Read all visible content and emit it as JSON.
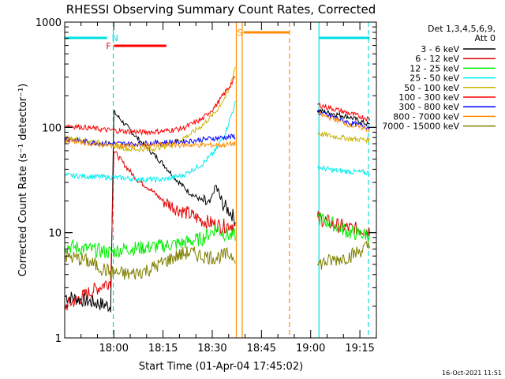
{
  "chart_data": {
    "type": "line",
    "title": "RHESSI Observing Summary Count Rates, Corrected",
    "xlabel": "Start Time (01-Apr-04 17:45:02)",
    "ylabel": "Corrected Count Rate (s⁻¹ detector⁻¹)",
    "y_scale": "log",
    "ylim": [
      1,
      1000
    ],
    "xlim_minutes": [
      0,
      95
    ],
    "x_ticks": [
      {
        "label": "18:00",
        "minutes": 14.97
      },
      {
        "label": "18:15",
        "minutes": 29.97
      },
      {
        "label": "18:30",
        "minutes": 44.97
      },
      {
        "label": "18:45",
        "minutes": 59.97
      },
      {
        "label": "19:00",
        "minutes": 74.97
      },
      {
        "label": "19:15",
        "minutes": 89.97
      }
    ],
    "y_ticks": [
      {
        "label": "1",
        "value": 1
      },
      {
        "label": "10",
        "value": 10
      },
      {
        "label": "100",
        "value": 100
      },
      {
        "label": "1000",
        "value": 1000
      }
    ],
    "legend_header": [
      "Det 1,3,4,5,6,9,",
      "Att 0"
    ],
    "timestamp": "16-Oct-2021 11:51",
    "series": [
      {
        "name": "3 - 6 keV",
        "color": "#000000",
        "points": [
          [
            0,
            2.5
          ],
          [
            14,
            2.0
          ],
          [
            15,
            140
          ],
          [
            18,
            110
          ],
          [
            22,
            80
          ],
          [
            26,
            60
          ],
          [
            30,
            45
          ],
          [
            34,
            32
          ],
          [
            38,
            24
          ],
          [
            42,
            20
          ],
          [
            44,
            18
          ],
          [
            46,
            28
          ],
          [
            48,
            19
          ],
          [
            51,
            15
          ],
          [
            52,
            13
          ],
          [
            63,
            0
          ],
          [
            75,
            0
          ],
          [
            77,
            145
          ],
          [
            82,
            135
          ],
          [
            87,
            125
          ],
          [
            93,
            105
          ]
        ]
      },
      {
        "name": "6 - 12 keV",
        "color": "#e00000",
        "points": [
          [
            0,
            2.0
          ],
          [
            14,
            3.5
          ],
          [
            15,
            60
          ],
          [
            18,
            45
          ],
          [
            22,
            32
          ],
          [
            26,
            26
          ],
          [
            30,
            20
          ],
          [
            34,
            17
          ],
          [
            38,
            15
          ],
          [
            42,
            13
          ],
          [
            46,
            12
          ],
          [
            48,
            11.5
          ],
          [
            51,
            12
          ],
          [
            52,
            11
          ],
          [
            63,
            0
          ],
          [
            75,
            0
          ],
          [
            77,
            14
          ],
          [
            82,
            12
          ],
          [
            87,
            11
          ],
          [
            93,
            10.5
          ]
        ]
      },
      {
        "name": "12 - 25 keV",
        "color": "#00ee00",
        "points": [
          [
            0,
            7.5
          ],
          [
            14,
            6.5
          ],
          [
            18,
            7.0
          ],
          [
            24,
            7.2
          ],
          [
            30,
            7.5
          ],
          [
            36,
            8.0
          ],
          [
            42,
            8.8
          ],
          [
            46,
            11
          ],
          [
            48,
            10
          ],
          [
            51,
            9.2
          ],
          [
            52,
            9.5
          ],
          [
            63,
            0
          ],
          [
            75,
            0
          ],
          [
            77,
            14
          ],
          [
            82,
            12
          ],
          [
            87,
            10
          ],
          [
            93,
            9.5
          ]
        ]
      },
      {
        "name": "25 - 50 keV",
        "color": "#00eeee",
        "points": [
          [
            0,
            35
          ],
          [
            10,
            34
          ],
          [
            18,
            33
          ],
          [
            24,
            32
          ],
          [
            30,
            32
          ],
          [
            36,
            35
          ],
          [
            42,
            45
          ],
          [
            46,
            60
          ],
          [
            49,
            90
          ],
          [
            52,
            170
          ],
          [
            63,
            0
          ],
          [
            75,
            0
          ],
          [
            77,
            42
          ],
          [
            82,
            39
          ],
          [
            87,
            38
          ],
          [
            93,
            37
          ]
        ]
      },
      {
        "name": "50 - 100 keV",
        "color": "#c8b400",
        "points": [
          [
            0,
            80
          ],
          [
            8,
            74
          ],
          [
            14,
            68
          ],
          [
            20,
            62
          ],
          [
            26,
            62
          ],
          [
            32,
            68
          ],
          [
            38,
            85
          ],
          [
            42,
            105
          ],
          [
            46,
            140
          ],
          [
            50,
            220
          ],
          [
            52,
            380
          ],
          [
            63,
            0
          ],
          [
            75,
            0
          ],
          [
            77,
            88
          ],
          [
            82,
            82
          ],
          [
            87,
            78
          ],
          [
            93,
            76
          ]
        ]
      },
      {
        "name": "100 - 300 keV",
        "color": "#ff0000",
        "points": [
          [
            0,
            105
          ],
          [
            6,
            100
          ],
          [
            12,
            95
          ],
          [
            18,
            92
          ],
          [
            24,
            90
          ],
          [
            30,
            92
          ],
          [
            36,
            98
          ],
          [
            42,
            120
          ],
          [
            46,
            160
          ],
          [
            50,
            240
          ],
          [
            52,
            300
          ],
          [
            63,
            0
          ],
          [
            75,
            0
          ],
          [
            77,
            165
          ],
          [
            82,
            150
          ],
          [
            87,
            135
          ],
          [
            93,
            120
          ]
        ]
      },
      {
        "name": "300 - 800 keV",
        "color": "#0000ff",
        "points": [
          [
            0,
            78
          ],
          [
            8,
            72
          ],
          [
            14,
            70
          ],
          [
            22,
            70
          ],
          [
            30,
            72
          ],
          [
            38,
            74
          ],
          [
            44,
            78
          ],
          [
            48,
            80
          ],
          [
            52,
            82
          ],
          [
            63,
            0
          ],
          [
            75,
            0
          ],
          [
            77,
            140
          ],
          [
            82,
            125
          ],
          [
            87,
            110
          ],
          [
            93,
            100
          ]
        ]
      },
      {
        "name": "800 - 7000 keV",
        "color": "#ff8c00",
        "points": [
          [
            0,
            76
          ],
          [
            8,
            70
          ],
          [
            14,
            67
          ],
          [
            22,
            67
          ],
          [
            30,
            68
          ],
          [
            38,
            68
          ],
          [
            44,
            68
          ],
          [
            48,
            68
          ],
          [
            52,
            70
          ],
          [
            63,
            0
          ],
          [
            75,
            0
          ],
          [
            77,
            135
          ],
          [
            82,
            120
          ],
          [
            87,
            105
          ],
          [
            93,
            95
          ]
        ]
      },
      {
        "name": "7000 - 15000 keV",
        "color": "#808000",
        "points": [
          [
            0,
            6.0
          ],
          [
            6,
            5.5
          ],
          [
            10,
            4.8
          ],
          [
            14,
            4.2
          ],
          [
            20,
            4.0
          ],
          [
            26,
            4.5
          ],
          [
            30,
            5.2
          ],
          [
            34,
            6.0
          ],
          [
            38,
            6.5
          ],
          [
            42,
            6.0
          ],
          [
            46,
            5.8
          ],
          [
            50,
            6.2
          ],
          [
            52,
            6.0
          ],
          [
            63,
            0
          ],
          [
            75,
            0
          ],
          [
            77,
            5.0
          ],
          [
            82,
            5.5
          ],
          [
            87,
            6.0
          ],
          [
            91,
            7.0
          ],
          [
            93,
            7.5
          ]
        ]
      }
    ],
    "flags": [
      {
        "label": "N",
        "color": "#00e0e0",
        "segments": [
          [
            0,
            12.9
          ],
          [
            77.5,
            93
          ]
        ]
      },
      {
        "label": "F",
        "color": "#ff0000",
        "segments": [
          [
            15,
            31
          ]
        ]
      },
      {
        "label": "S",
        "color": "#ff8c00",
        "segments": [
          [
            54.5,
            68.5
          ]
        ]
      }
    ],
    "vlines": [
      {
        "minutes": 14.8,
        "color": "#00e0e0",
        "style": "dashed"
      },
      {
        "minutes": 52.3,
        "color": "#ff8c00",
        "style": "solid"
      },
      {
        "minutes": 54.1,
        "color": "#ff8c00",
        "style": "solid"
      },
      {
        "minutes": 68.5,
        "color": "#ff8c00",
        "style": "dashed"
      },
      {
        "minutes": 77.5,
        "color": "#00e0e0",
        "style": "solid"
      },
      {
        "minutes": 92.6,
        "color": "#00e0e0",
        "style": "dashed"
      }
    ]
  }
}
